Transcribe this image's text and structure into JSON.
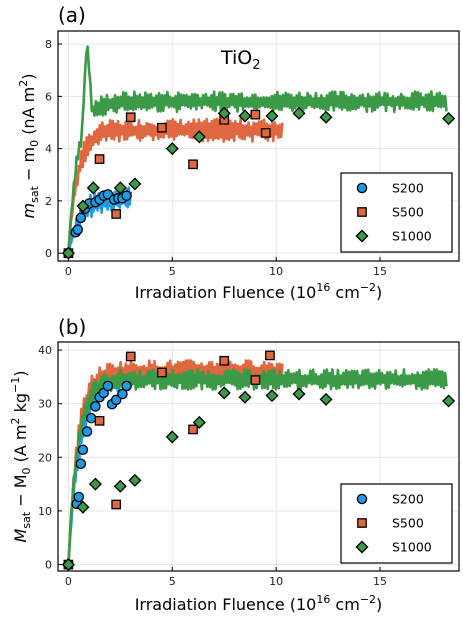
{
  "colors": {
    "S200": "#1a9be8",
    "S500": "#e0673f",
    "S1000": "#3a9a45"
  },
  "chart_data": [
    {
      "type": "line+scatter",
      "panel_label": "(a)",
      "title": "TiO2",
      "ylabel": "m_sat − m_0 (nA m²)",
      "ylabel_parts": {
        "main": "m",
        "sub1": "sat",
        "mid": " − m",
        "sub2": "0",
        "unit": " (nA m",
        "sup": "2",
        "end": ")"
      },
      "xlabel_parts": {
        "main": "Irradiation Fluence (10",
        "sup": "16",
        "unit": " cm",
        "sup2": "−2",
        "end": ")"
      },
      "xlim": [
        -0.5,
        18.8
      ],
      "ylim": [
        -0.3,
        8.5
      ],
      "xticks": [
        0,
        5,
        10,
        15
      ],
      "yticks": [
        0,
        2,
        4,
        6,
        8
      ],
      "legend_position": "bottom-right",
      "series": [
        {
          "name": "S200",
          "marker": "circle",
          "points": [
            [
              0,
              0
            ],
            [
              0.35,
              0.8
            ],
            [
              0.45,
              0.9
            ],
            [
              0.6,
              1.35
            ],
            [
              0.8,
              1.7
            ],
            [
              1.0,
              1.9
            ],
            [
              1.3,
              1.95
            ],
            [
              1.5,
              2.05
            ],
            [
              1.7,
              2.2
            ],
            [
              1.9,
              2.25
            ],
            [
              2.2,
              2.05
            ],
            [
              2.4,
              2.1
            ],
            [
              2.6,
              2.1
            ],
            [
              2.8,
              2.2
            ]
          ],
          "line_max_x": 3.0,
          "line_level": 2.1
        },
        {
          "name": "S500",
          "marker": "square",
          "points": [
            [
              0,
              0
            ],
            [
              1.5,
              3.6
            ],
            [
              2.3,
              1.5
            ],
            [
              3.0,
              5.2
            ],
            [
              4.5,
              4.8
            ],
            [
              6.0,
              3.4
            ],
            [
              7.5,
              5.1
            ],
            [
              9.0,
              5.3
            ],
            [
              9.5,
              4.6
            ]
          ],
          "line_max_x": 10.3,
          "line_level": 4.7
        },
        {
          "name": "S1000",
          "marker": "diamond",
          "points": [
            [
              0,
              0
            ],
            [
              0.7,
              1.8
            ],
            [
              1.2,
              2.5
            ],
            [
              2.5,
              2.5
            ],
            [
              3.2,
              2.65
            ],
            [
              5.0,
              4.0
            ],
            [
              6.3,
              4.45
            ],
            [
              7.5,
              5.35
            ],
            [
              8.5,
              5.25
            ],
            [
              9.8,
              5.25
            ],
            [
              11.1,
              5.35
            ],
            [
              12.4,
              5.2
            ],
            [
              18.3,
              5.15
            ]
          ],
          "line_max_x": 18.2,
          "line_level": 5.8,
          "peak": [
            0.9,
            8.2
          ]
        }
      ]
    },
    {
      "type": "line+scatter",
      "panel_label": "(b)",
      "ylabel": "M_sat − M_0 (A m² kg⁻¹)",
      "ylabel_parts": {
        "main": "M",
        "sub1": "sat",
        "mid": " − M",
        "sub2": "0",
        "unit": " (A m",
        "sup": "2",
        "unit2": " kg",
        "sup2": "−1",
        "end": ")"
      },
      "xlabel_parts": {
        "main": "Irradiation Fluence (10",
        "sup": "16",
        "unit": " cm",
        "sup2": "−2",
        "end": ")"
      },
      "xlim": [
        -0.5,
        18.8
      ],
      "ylim": [
        -1.2,
        41.5
      ],
      "xticks": [
        0,
        5,
        10,
        15
      ],
      "yticks": [
        0,
        10,
        20,
        30,
        40
      ],
      "legend_position": "bottom-right",
      "series": [
        {
          "name": "S200",
          "marker": "circle",
          "points": [
            [
              0,
              0
            ],
            [
              0.4,
              11.3
            ],
            [
              0.5,
              12.6
            ],
            [
              0.6,
              18.8
            ],
            [
              0.7,
              21.4
            ],
            [
              0.9,
              24.8
            ],
            [
              1.1,
              27.3
            ],
            [
              1.3,
              29.5
            ],
            [
              1.5,
              31.2
            ],
            [
              1.7,
              32.0
            ],
            [
              1.9,
              33.3
            ],
            [
              2.1,
              29.9
            ],
            [
              2.3,
              30.7
            ],
            [
              2.6,
              31.8
            ],
            [
              2.8,
              33.3
            ]
          ],
          "line_max_x": 3.0,
          "line_level": 35
        },
        {
          "name": "S500",
          "marker": "square",
          "points": [
            [
              0,
              0
            ],
            [
              1.5,
              26.8
            ],
            [
              2.3,
              11.2
            ],
            [
              3.0,
              38.8
            ],
            [
              4.5,
              35.8
            ],
            [
              6.0,
              25.2
            ],
            [
              7.5,
              38.0
            ],
            [
              9.0,
              34.4
            ],
            [
              9.7,
              39.0
            ]
          ],
          "line_max_x": 10.3,
          "line_level": 36
        },
        {
          "name": "S1000",
          "marker": "diamond",
          "points": [
            [
              0,
              0
            ],
            [
              0.7,
              10.7
            ],
            [
              1.3,
              15.0
            ],
            [
              2.5,
              14.6
            ],
            [
              3.2,
              15.7
            ],
            [
              5.0,
              23.8
            ],
            [
              6.3,
              26.5
            ],
            [
              7.5,
              32.0
            ],
            [
              8.5,
              31.2
            ],
            [
              9.8,
              31.5
            ],
            [
              11.1,
              31.8
            ],
            [
              12.4,
              30.8
            ],
            [
              18.3,
              30.5
            ]
          ],
          "line_max_x": 18.2,
          "line_level": 34.5
        }
      ]
    }
  ],
  "legend": [
    "S200",
    "S500",
    "S1000"
  ]
}
